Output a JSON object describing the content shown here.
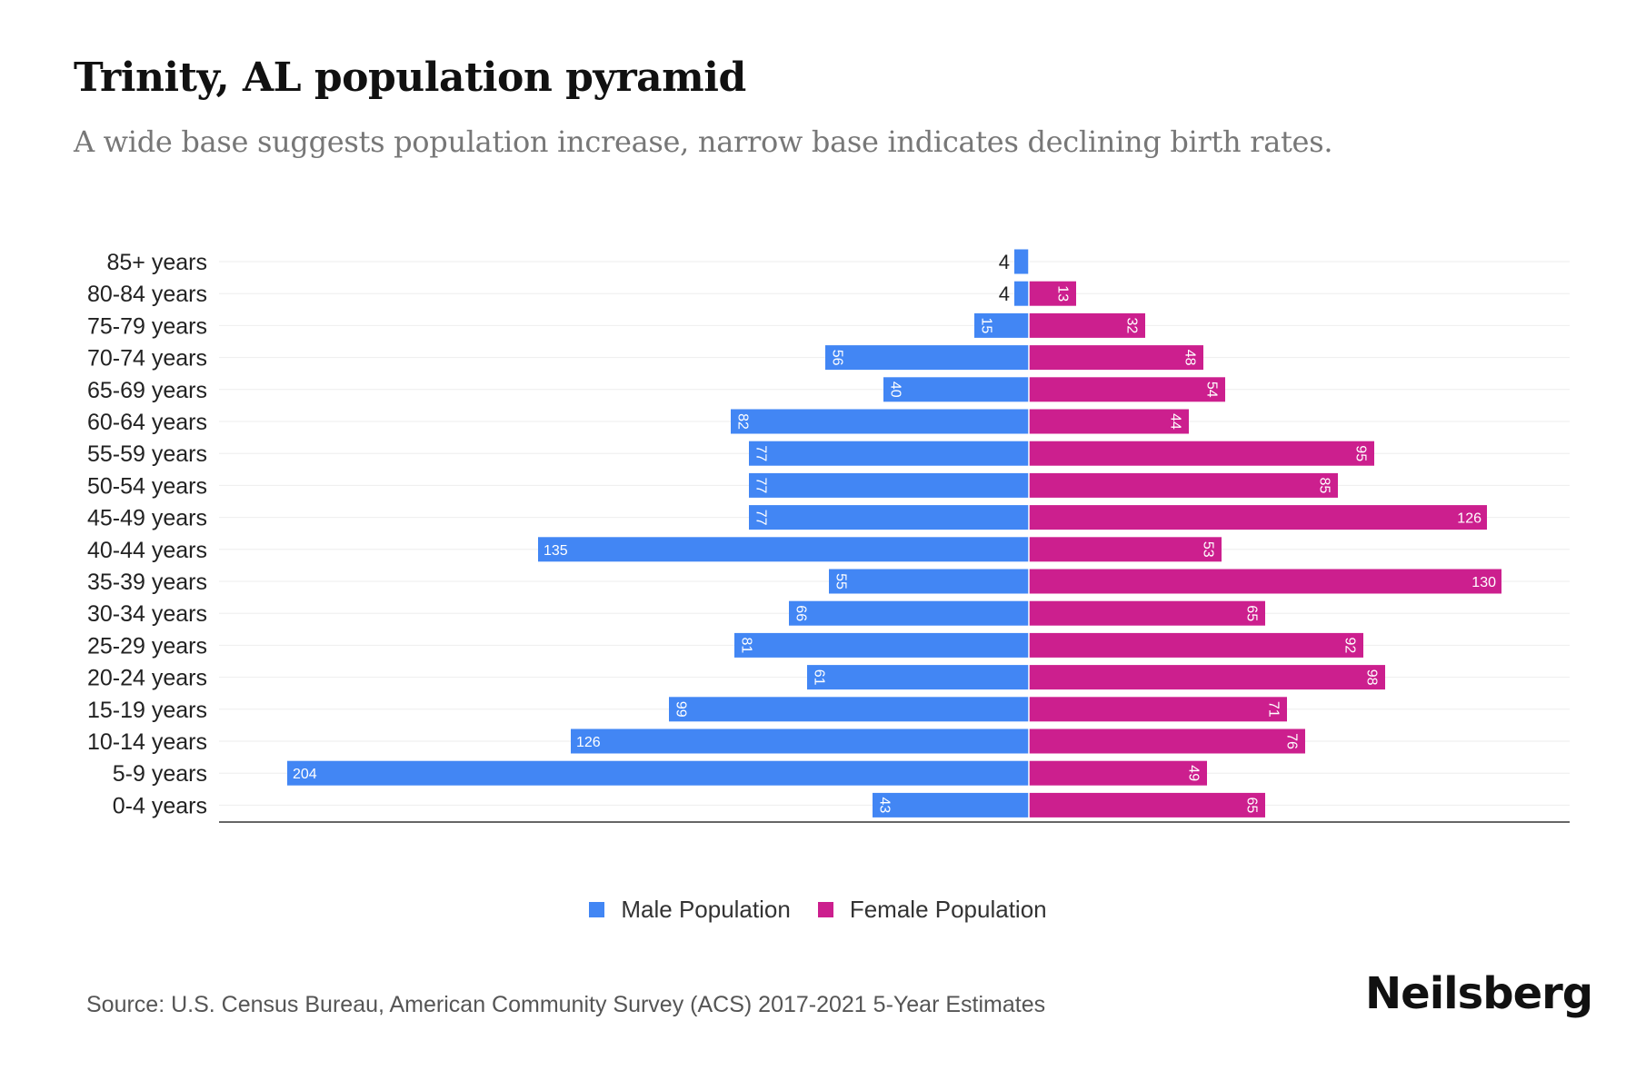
{
  "title": "Trinity, AL population pyramid",
  "subtitle": "A wide base suggests population increase, narrow base indicates declining birth rates.",
  "source": "Source: U.S. Census Bureau, American Community Survey (ACS) 2017-2021 5-Year Estimates",
  "logo": "Neilsberg",
  "colors": {
    "male": "#4286f4",
    "female": "#cc1f8e"
  },
  "chart_data": {
    "type": "bar",
    "orientation": "horizontal-pyramid",
    "title": "Trinity, AL population pyramid",
    "categories": [
      "85+ years",
      "80-84 years",
      "75-79 years",
      "70-74 years",
      "65-69 years",
      "60-64 years",
      "55-59 years",
      "50-54 years",
      "45-49 years",
      "40-44 years",
      "35-39 years",
      "30-34 years",
      "25-29 years",
      "20-24 years",
      "15-19 years",
      "10-14 years",
      "5-9 years",
      "0-4 years"
    ],
    "series": [
      {
        "name": "Male Population",
        "values": [
          4,
          4,
          15,
          56,
          40,
          82,
          77,
          77,
          77,
          135,
          55,
          66,
          81,
          61,
          99,
          126,
          204,
          43
        ]
      },
      {
        "name": "Female Population",
        "values": [
          0,
          13,
          32,
          48,
          54,
          44,
          95,
          85,
          126,
          53,
          130,
          65,
          92,
          98,
          71,
          76,
          49,
          65
        ]
      }
    ],
    "legend_position": "bottom-center",
    "grid": true
  }
}
